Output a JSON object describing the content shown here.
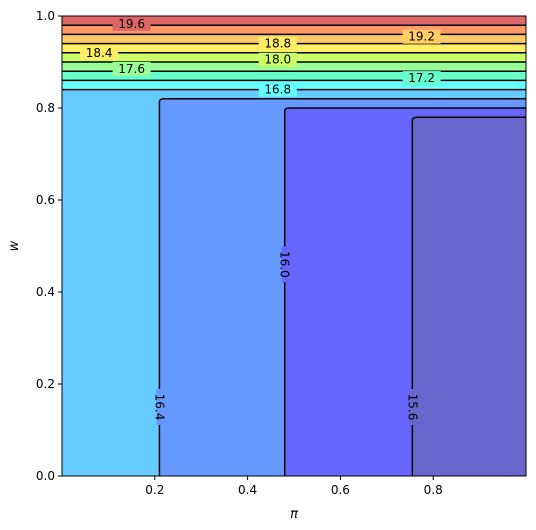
{
  "chart_data": {
    "type": "contour",
    "title": "",
    "xlabel": "π",
    "ylabel": "w",
    "xlim": [
      0.0,
      1.0
    ],
    "ylim": [
      0.0,
      1.0
    ],
    "xticks": [
      0.2,
      0.4,
      0.6,
      0.8
    ],
    "yticks": [
      0.0,
      0.2,
      0.4,
      0.6,
      0.8,
      1.0
    ],
    "xtick_labels": [
      "0.2",
      "0.4",
      "0.6",
      "0.8"
    ],
    "ytick_labels": [
      "0.0",
      "0.2",
      "0.4",
      "0.6",
      "0.8",
      "1.0"
    ],
    "colormap": "jet",
    "grid": false,
    "horizontal_bands": [
      {
        "w_low": 0.84,
        "w_high": 1.0,
        "levels": [
          16.8,
          17.2,
          17.6,
          18.0,
          18.4,
          18.8,
          19.2,
          19.6
        ]
      }
    ],
    "regions": [
      {
        "range": "16.4–16.8",
        "color": "#66ccff",
        "x_from": 0.0
      },
      {
        "range": "16.0–16.4",
        "color": "#6699ff",
        "x_from": 0.21,
        "w_top": 0.82
      },
      {
        "range": "15.6–16.0",
        "color": "#6666ff",
        "x_from": 0.48,
        "w_top": 0.8
      },
      {
        "range": "below 15.6",
        "color": "#6666cc",
        "x_from": 0.755,
        "w_top": 0.78
      }
    ],
    "bands": [
      {
        "from": 16.8,
        "to": 17.2,
        "color": "#66ffff"
      },
      {
        "from": 17.2,
        "to": 17.6,
        "color": "#66ffcc"
      },
      {
        "from": 17.6,
        "to": 18.0,
        "color": "#99ff99"
      },
      {
        "from": 18.0,
        "to": 18.4,
        "color": "#ccff66"
      },
      {
        "from": 18.4,
        "to": 18.8,
        "color": "#ffee66"
      },
      {
        "from": 18.8,
        "to": 19.2,
        "color": "#ffcc66"
      },
      {
        "from": 19.2,
        "to": 19.6,
        "color": "#ff9966"
      },
      {
        "from": 19.6,
        "to": 20.0,
        "color": "#dd6666"
      }
    ],
    "contour_labels": [
      {
        "text": "19.6",
        "x": 0.15,
        "y": 0.983
      },
      {
        "text": "19.2",
        "x": 0.775,
        "y": 0.955
      },
      {
        "text": "18.8",
        "x": 0.465,
        "y": 0.94
      },
      {
        "text": "18.4",
        "x": 0.08,
        "y": 0.92
      },
      {
        "text": "18.0",
        "x": 0.465,
        "y": 0.905
      },
      {
        "text": "17.6",
        "x": 0.15,
        "y": 0.885
      },
      {
        "text": "17.2",
        "x": 0.775,
        "y": 0.865
      },
      {
        "text": "16.8",
        "x": 0.465,
        "y": 0.84
      },
      {
        "text": "16.4",
        "x": 0.21,
        "y": 0.15,
        "vertical": true
      },
      {
        "text": "16.0",
        "x": 0.48,
        "y": 0.46,
        "vertical": true
      },
      {
        "text": "15.6",
        "x": 0.755,
        "y": 0.15,
        "vertical": true
      }
    ]
  }
}
